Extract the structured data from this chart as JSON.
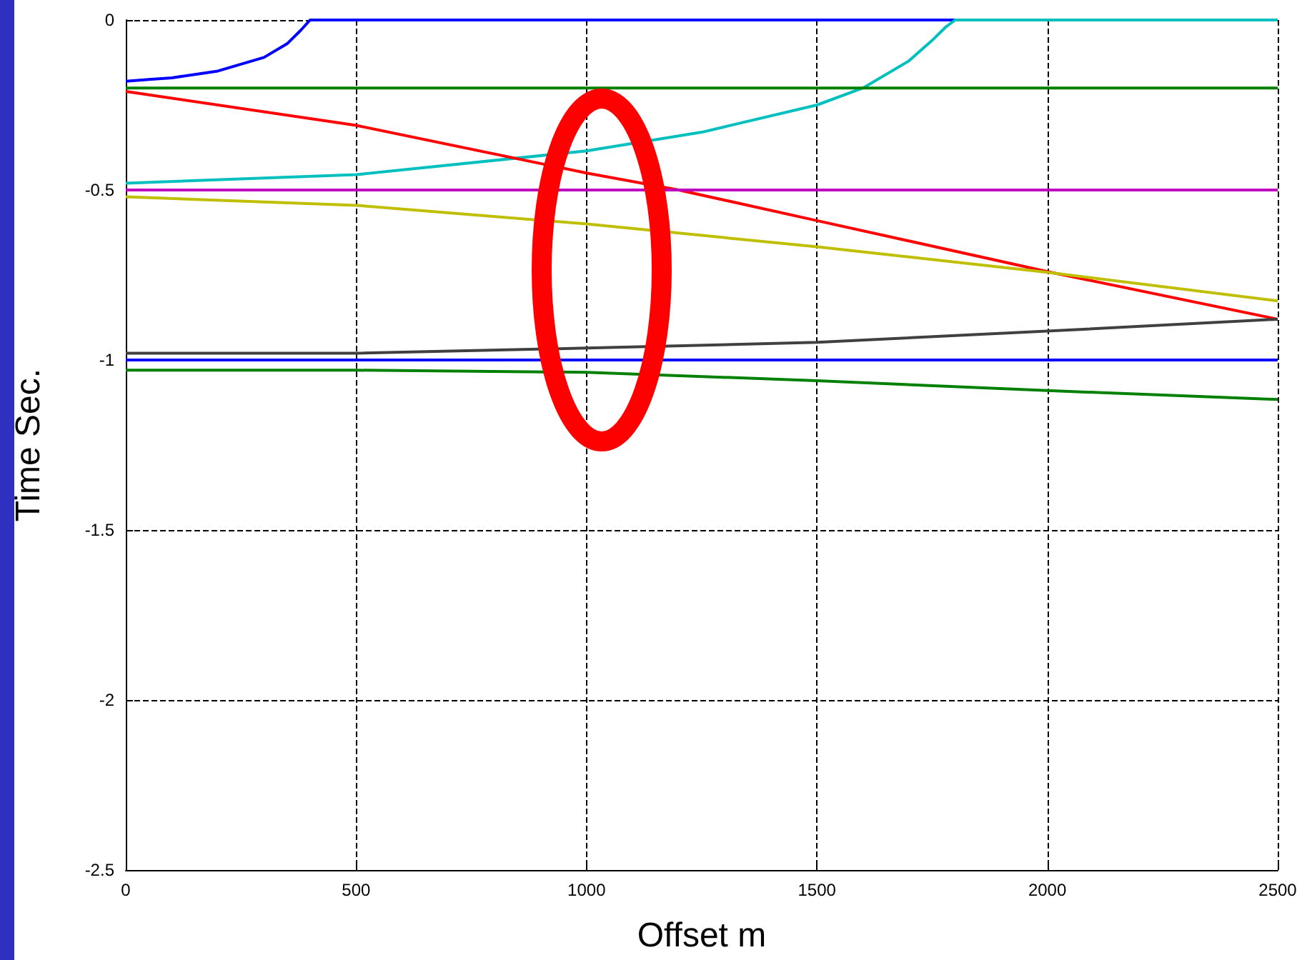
{
  "chart_data": {
    "type": "line",
    "xlabel": "Offset m",
    "ylabel": "Time Sec.",
    "xlim": [
      0,
      2500
    ],
    "xticks": [
      0,
      500,
      1000,
      1500,
      2000,
      2500
    ],
    "ylim": [
      -2.5,
      0
    ],
    "yticks": [
      -2.5,
      -2,
      -1.5,
      -1,
      -0.5,
      0
    ],
    "grid": true,
    "line_style": "solid",
    "marker": "none",
    "series": [
      {
        "color": "#0000ff",
        "x": [
          0,
          50,
          100,
          150,
          200,
          250,
          300,
          350,
          380,
          400,
          2500
        ],
        "values": [
          -0.18,
          -0.175,
          -0.17,
          -0.16,
          -0.15,
          -0.13,
          -0.11,
          -0.07,
          -0.03,
          0,
          0
        ]
      },
      {
        "color": "#00bfbf",
        "x": [
          0,
          500,
          1000,
          1250,
          1500,
          1600,
          1700,
          1750,
          1780,
          1800,
          2500
        ],
        "values": [
          -0.48,
          -0.455,
          -0.385,
          -0.33,
          -0.25,
          -0.2,
          -0.12,
          -0.06,
          -0.02,
          0,
          0
        ]
      },
      {
        "color": "#008000",
        "x": [
          0,
          2500
        ],
        "values": [
          -0.2,
          -0.2
        ]
      },
      {
        "color": "#ff0000",
        "x": [
          0,
          500,
          1000,
          1200,
          1500,
          2000,
          2500
        ],
        "values": [
          -0.21,
          -0.31,
          -0.45,
          -0.5,
          -0.59,
          -0.74,
          -0.88
        ]
      },
      {
        "color": "#bf00bf",
        "x": [
          0,
          2500
        ],
        "values": [
          -0.5,
          -0.5
        ]
      },
      {
        "color": "#bfbf00",
        "x": [
          0,
          500,
          1000,
          1500,
          2000,
          2500
        ],
        "values": [
          -0.52,
          -0.545,
          -0.6,
          -0.667,
          -0.742,
          -0.826
        ]
      },
      {
        "color": "#404040",
        "x": [
          0,
          500,
          1000,
          1500,
          2000,
          2500
        ],
        "values": [
          -0.98,
          -0.98,
          -0.965,
          -0.948,
          -0.915,
          -0.88
        ]
      },
      {
        "color": "#0000ff",
        "x": [
          0,
          2500
        ],
        "values": [
          -1,
          -1
        ]
      },
      {
        "color": "#008000",
        "x": [
          0,
          500,
          1000,
          1500,
          2000,
          2500
        ],
        "values": [
          -1.03,
          -1.03,
          -1.036,
          -1.061,
          -1.09,
          -1.116
        ]
      }
    ]
  }
}
